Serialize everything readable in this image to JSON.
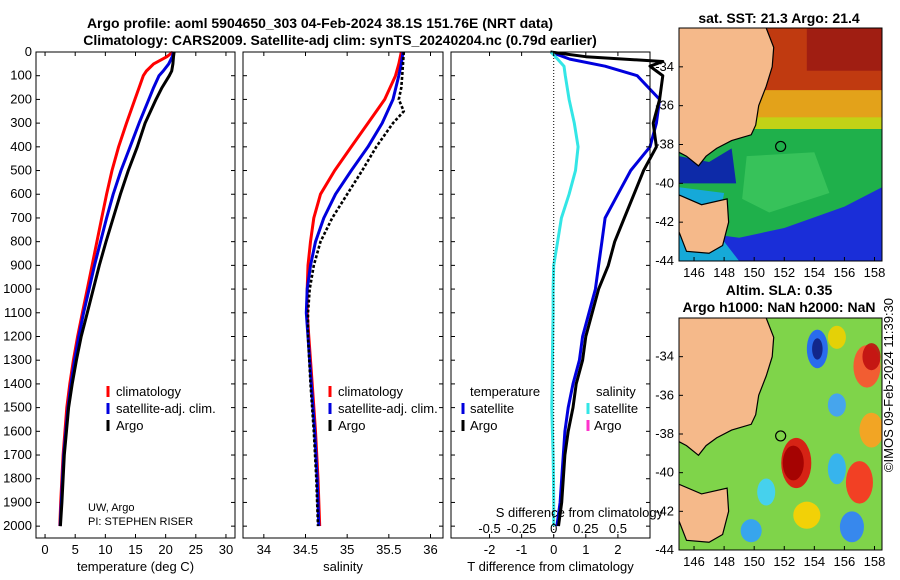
{
  "header": {
    "title_line1": "Argo profile: aoml 5904650_303 04-Feb-2024 38.1S 151.76E (NRT data)",
    "title_line2": "Climatology: CARS2009. Satellite-adj clim: synTS_20240204.nc (0.79d earlier)"
  },
  "credit": {
    "line1": "UW, Argo",
    "line2": "PI: STEPHEN RISER"
  },
  "watermark": "©IMOS 09-Feb-2024 11:39:30",
  "colors": {
    "red": "#ff0000",
    "blue": "#0000dd",
    "black": "#000000",
    "cyan": "#33e6e6",
    "magenta": "#ff33cc",
    "land": "#f5b98a",
    "frame": "#000000"
  },
  "depth_axis": {
    "ylim": [
      0,
      2050
    ],
    "ticks": [
      0,
      100,
      200,
      300,
      400,
      500,
      600,
      700,
      800,
      900,
      1000,
      1100,
      1200,
      1300,
      1400,
      1500,
      1600,
      1700,
      1800,
      1900,
      2000
    ]
  },
  "chart_data": [
    {
      "type": "line",
      "id": "temperature",
      "xlabel": "temperature (deg C)",
      "xlim": [
        -1.5,
        31.5
      ],
      "xticks": [
        0,
        5,
        10,
        15,
        20,
        25,
        30
      ],
      "xticklabels": [
        "0",
        "5",
        "10",
        "15",
        "20",
        "25",
        "30"
      ],
      "legend": [
        "climatology",
        "satellite-adj. clim.",
        "Argo"
      ],
      "series": [
        {
          "name": "climatology",
          "color": "red",
          "depth": [
            0,
            20,
            50,
            80,
            100,
            150,
            200,
            300,
            400,
            500,
            600,
            700,
            800,
            900,
            1000,
            1100,
            1200,
            1300,
            1400,
            1500,
            1700,
            1900,
            2000
          ],
          "values": [
            21.2,
            20.2,
            18.0,
            16.8,
            16.3,
            15.6,
            14.9,
            13.5,
            12.2,
            11.1,
            10.2,
            9.4,
            8.6,
            7.8,
            7.0,
            6.2,
            5.4,
            4.7,
            4.1,
            3.6,
            3.0,
            2.6,
            2.45
          ]
        },
        {
          "name": "satellite-adj. clim.",
          "color": "blue",
          "depth": [
            0,
            20,
            50,
            80,
            100,
            150,
            200,
            300,
            400,
            500,
            600,
            700,
            800,
            900,
            1000,
            1100,
            1200,
            1300,
            1400,
            1500,
            1700,
            1900,
            2000
          ],
          "values": [
            21.3,
            21.1,
            20.5,
            19.6,
            18.9,
            18.0,
            17.2,
            15.6,
            14.1,
            12.6,
            11.3,
            10.2,
            9.2,
            8.2,
            7.3,
            6.4,
            5.6,
            4.9,
            4.3,
            3.8,
            3.1,
            2.7,
            2.5
          ]
        },
        {
          "name": "Argo",
          "color": "black",
          "depth": [
            0,
            20,
            50,
            80,
            100,
            150,
            200,
            300,
            400,
            500,
            600,
            700,
            800,
            900,
            1000,
            1100,
            1200,
            1300,
            1400,
            1500,
            1700,
            1900,
            2000
          ],
          "values": [
            21.4,
            21.3,
            21.2,
            21.0,
            20.6,
            19.4,
            18.4,
            16.6,
            15.3,
            13.8,
            12.5,
            11.3,
            10.1,
            9.0,
            8.0,
            7.0,
            6.0,
            5.2,
            4.5,
            3.9,
            3.2,
            2.8,
            2.55
          ]
        }
      ]
    },
    {
      "type": "line",
      "id": "salinity",
      "xlabel": "salinity",
      "xlim": [
        33.75,
        36.15
      ],
      "xticks": [
        34,
        34.5,
        35,
        35.5,
        36
      ],
      "xticklabels": [
        "34",
        "34.5",
        "35",
        "35.5",
        "36"
      ],
      "legend": [
        "climatology",
        "satellite-adj. clim.",
        "Argo"
      ],
      "series": [
        {
          "name": "climatology",
          "color": "red",
          "depth": [
            0,
            50,
            100,
            200,
            300,
            400,
            500,
            600,
            700,
            800,
            900,
            1000,
            1100,
            1200,
            1400,
            1600,
            1800,
            2000
          ],
          "values": [
            35.65,
            35.62,
            35.58,
            35.45,
            35.25,
            35.05,
            34.85,
            34.68,
            34.6,
            34.56,
            34.53,
            34.52,
            34.52,
            34.54,
            34.58,
            34.62,
            34.65,
            34.67
          ]
        },
        {
          "name": "satellite-adj. clim.",
          "color": "blue",
          "depth": [
            0,
            50,
            100,
            200,
            300,
            400,
            500,
            600,
            700,
            800,
            900,
            1000,
            1100,
            1200,
            1400,
            1600,
            1800,
            2000
          ],
          "values": [
            35.67,
            35.65,
            35.62,
            35.55,
            35.42,
            35.25,
            35.05,
            34.86,
            34.72,
            34.62,
            34.56,
            34.52,
            34.51,
            34.53,
            34.57,
            34.61,
            34.64,
            34.66
          ]
        },
        {
          "name": "Argo",
          "color": "black",
          "dashed": true,
          "depth": [
            0,
            50,
            100,
            150,
            200,
            250,
            300,
            400,
            500,
            600,
            700,
            800,
            900,
            1000,
            1100,
            1200,
            1400,
            1600,
            1800,
            2000
          ],
          "values": [
            35.68,
            35.67,
            35.66,
            35.65,
            35.62,
            35.68,
            35.55,
            35.35,
            35.18,
            35.0,
            34.82,
            34.68,
            34.6,
            34.55,
            34.53,
            34.53,
            34.56,
            34.6,
            34.63,
            34.65
          ]
        }
      ]
    },
    {
      "type": "line",
      "id": "difference",
      "xlabel": "T difference from climatology",
      "xlabel2": "S difference from climatology",
      "xlim": [
        -3.2,
        3.0
      ],
      "xticks": [
        -2,
        -1,
        0,
        1,
        2
      ],
      "xticklabels": [
        "-2",
        "-1",
        "0",
        "1",
        "2"
      ],
      "sticks": [
        -0.5,
        -0.25,
        0,
        0.25,
        0.5
      ],
      "sticklabels": [
        "-0.5",
        "-0.25",
        "0",
        "0.25",
        "0.5"
      ],
      "s_scale": 4,
      "legend_left_title": "temperature",
      "legend_left": [
        "satellite",
        "Argo"
      ],
      "legend_right_title": "salinity",
      "legend_right": [
        "satellite",
        "Argo"
      ],
      "series": [
        {
          "name": "T satellite",
          "color": "blue",
          "depth": [
            0,
            30,
            60,
            100,
            200,
            300,
            400,
            500,
            600,
            700,
            800,
            900,
            1000,
            1100,
            1200,
            1300,
            1400,
            1500,
            1600,
            1700,
            1800,
            1900,
            2000
          ],
          "values": [
            -0.1,
            0.5,
            1.6,
            2.6,
            3.3,
            3.2,
            3.0,
            2.4,
            2.0,
            1.6,
            1.5,
            1.4,
            1.3,
            1.1,
            0.9,
            0.8,
            0.6,
            0.45,
            0.35,
            0.3,
            0.25,
            0.2,
            0.1
          ]
        },
        {
          "name": "T Argo",
          "color": "black",
          "depth": [
            0,
            20,
            40,
            60,
            80,
            100,
            200,
            300,
            400,
            500,
            600,
            700,
            800,
            900,
            1000,
            1100,
            1200,
            1300,
            1400,
            1500,
            1600,
            1700,
            1800,
            1900,
            2000
          ],
          "values": [
            -0.1,
            1.0,
            3.4,
            3.0,
            3.2,
            3.4,
            3.3,
            3.1,
            3.2,
            2.8,
            2.5,
            2.2,
            1.9,
            1.7,
            1.4,
            1.2,
            1.0,
            0.9,
            0.7,
            0.6,
            0.45,
            0.35,
            0.3,
            0.25,
            0.15
          ]
        },
        {
          "name": "S satellite",
          "color": "cyan",
          "depth": [
            0,
            30,
            60,
            100,
            200,
            300,
            400,
            500,
            600,
            700,
            800,
            900,
            1000,
            1100,
            1200,
            1300,
            1400,
            1500,
            1600,
            1700,
            1800,
            1900,
            2000
          ],
          "values": [
            -0.02,
            0.03,
            0.08,
            0.09,
            0.12,
            0.16,
            0.19,
            0.17,
            0.12,
            0.06,
            0.03,
            0.0,
            -0.005,
            -0.005,
            -0.008,
            -0.01,
            -0.012,
            -0.015,
            -0.01,
            -0.005,
            -0.002,
            0.0,
            0.0
          ]
        }
      ]
    },
    {
      "type": "heatmap",
      "id": "sst_map",
      "title": "sat. SST: 21.3 Argo: 21.4",
      "xlim": [
        145,
        158.5
      ],
      "ylim": [
        -44,
        -32
      ],
      "xticks": [
        146,
        148,
        150,
        152,
        154,
        156,
        158
      ],
      "xticklabels": [
        "146",
        "148",
        "150",
        "152",
        "154",
        "156",
        "158"
      ],
      "yticks": [
        -34,
        -36,
        -38,
        -40,
        -42,
        -44
      ],
      "yticklabels": [
        "-34",
        "-36",
        "-38",
        "-40",
        "-42",
        "-44"
      ],
      "marker": [
        151.76,
        -38.1
      ]
    },
    {
      "type": "heatmap",
      "id": "sla_map",
      "title1": "Altim. SLA: 0.35",
      "title2": "Argo h1000: NaN h2000: NaN",
      "xlim": [
        145,
        158.5
      ],
      "ylim": [
        -44,
        -32
      ],
      "xticks": [
        146,
        148,
        150,
        152,
        154,
        156,
        158
      ],
      "xticklabels": [
        "146",
        "148",
        "150",
        "152",
        "154",
        "156",
        "158"
      ],
      "yticks": [
        -34,
        -36,
        -38,
        -40,
        -42,
        -44
      ],
      "yticklabels": [
        "-34",
        "-36",
        "-38",
        "-40",
        "-42",
        "-44"
      ],
      "marker": [
        151.76,
        -38.1
      ]
    }
  ]
}
